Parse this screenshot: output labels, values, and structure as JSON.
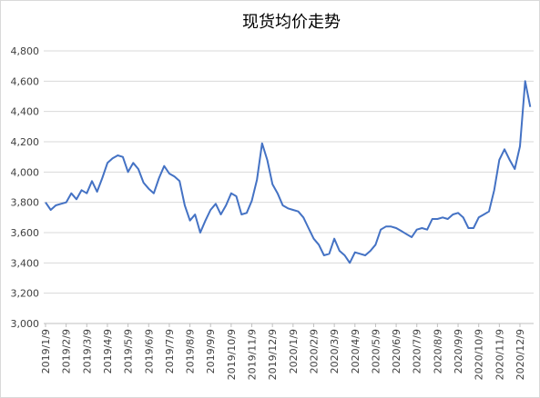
{
  "chart_data": {
    "type": "line",
    "title": "现货均价走势",
    "categories": [
      "2019/1/9",
      null,
      null,
      null,
      "2019/2/9",
      null,
      null,
      null,
      "2019/3/9",
      null,
      null,
      null,
      "2019/4/9",
      null,
      null,
      null,
      "2019/5/9",
      null,
      null,
      null,
      "2019/6/9",
      null,
      null,
      null,
      "2019/7/9",
      null,
      null,
      null,
      "2019/8/9",
      null,
      null,
      null,
      "2019/9/9",
      null,
      null,
      null,
      "2019/10/9",
      null,
      null,
      null,
      "2019/11/9",
      null,
      null,
      null,
      "2019/12/9",
      null,
      null,
      null,
      "2020/1/9",
      null,
      null,
      null,
      "2020/2/9",
      null,
      null,
      null,
      "2020/3/9",
      null,
      null,
      null,
      "2020/4/9",
      null,
      null,
      null,
      "2020/5/9",
      null,
      null,
      null,
      "2020/6/9",
      null,
      null,
      null,
      "2020/7/9",
      null,
      null,
      null,
      "2020/8/9",
      null,
      null,
      null,
      "2020/9/9",
      null,
      null,
      null,
      "2020/10/9",
      null,
      null,
      null,
      "2020/11/9",
      null,
      null,
      null,
      "2020/12/9",
      null,
      null
    ],
    "series": [
      {
        "name": "现货均价",
        "color": "#4472c4",
        "values": [
          3800,
          3750,
          3780,
          3790,
          3800,
          3860,
          3820,
          3880,
          3860,
          3940,
          3870,
          3960,
          4060,
          4090,
          4110,
          4100,
          4000,
          4060,
          4020,
          3930,
          3890,
          3860,
          3960,
          4040,
          3990,
          3970,
          3940,
          3780,
          3680,
          3720,
          3600,
          3680,
          3750,
          3790,
          3720,
          3780,
          3860,
          3840,
          3720,
          3730,
          3810,
          3950,
          4190,
          4080,
          3920,
          3860,
          3780,
          3760,
          3750,
          3740,
          3700,
          3630,
          3560,
          3520,
          3450,
          3460,
          3560,
          3480,
          3450,
          3400,
          3470,
          3460,
          3450,
          3480,
          3520,
          3620,
          3640,
          3640,
          3630,
          3610,
          3590,
          3570,
          3620,
          3630,
          3620,
          3690,
          3690,
          3700,
          3690,
          3720,
          3730,
          3700,
          3630,
          3630,
          3700,
          3720,
          3740,
          3880,
          4080,
          4150,
          4080,
          4020,
          4170,
          4600,
          4430
        ]
      }
    ],
    "ylim": [
      3000,
      4800
    ],
    "yticks": [
      {
        "value": 3000,
        "label": "3,000"
      },
      {
        "value": 3200,
        "label": "3,200"
      },
      {
        "value": 3400,
        "label": "3,400"
      },
      {
        "value": 3600,
        "label": "3,600"
      },
      {
        "value": 3800,
        "label": "3,800"
      },
      {
        "value": 4000,
        "label": "4,000"
      },
      {
        "value": 4200,
        "label": "4,200"
      },
      {
        "value": 4400,
        "label": "4,400"
      },
      {
        "value": 4600,
        "label": "4,600"
      },
      {
        "value": 4800,
        "label": "4,800"
      }
    ],
    "grid": true
  }
}
